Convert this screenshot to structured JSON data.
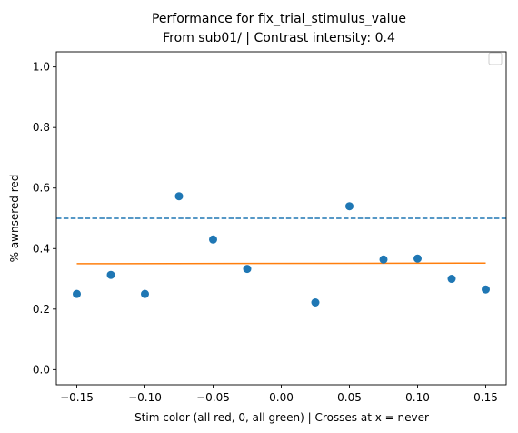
{
  "chart_data": {
    "type": "scatter",
    "title": "Performance for fix_trial_stimulus_value",
    "subtitle": "From sub01/ | Contrast intensity: 0.4",
    "xlabel": "Stim color (all red, 0, all green) | Crosses at x = never",
    "ylabel": "% awnsered red",
    "xlim": [
      -0.165,
      0.165
    ],
    "ylim": [
      -0.05,
      1.05
    ],
    "x_ticks": [
      -0.15,
      -0.1,
      -0.05,
      0.0,
      0.05,
      0.1,
      0.15
    ],
    "x_tick_labels": [
      "−0.15",
      "−0.10",
      "−0.05",
      "0.00",
      "0.05",
      "0.10",
      "0.15"
    ],
    "y_ticks": [
      0.0,
      0.2,
      0.4,
      0.6,
      0.8,
      1.0
    ],
    "y_tick_labels": [
      "0.0",
      "0.2",
      "0.4",
      "0.6",
      "0.8",
      "1.0"
    ],
    "grid": false,
    "legend": {
      "placement": "top-right",
      "entries": []
    },
    "points": {
      "x": [
        -0.15,
        -0.125,
        -0.1,
        -0.075,
        -0.05,
        -0.025,
        0.025,
        0.05,
        0.075,
        0.1,
        0.125,
        0.15
      ],
      "y": [
        0.25,
        0.313,
        0.25,
        0.573,
        0.43,
        0.333,
        0.222,
        0.54,
        0.364,
        0.367,
        0.3,
        0.265
      ],
      "color": "#1f77b4"
    },
    "fit_line": {
      "x": [
        -0.15,
        0.15
      ],
      "y": [
        0.35,
        0.352
      ],
      "color": "#ff7f0e"
    },
    "reference_line": {
      "y": 0.5,
      "style": "dashed",
      "color": "#1f77b4"
    }
  }
}
